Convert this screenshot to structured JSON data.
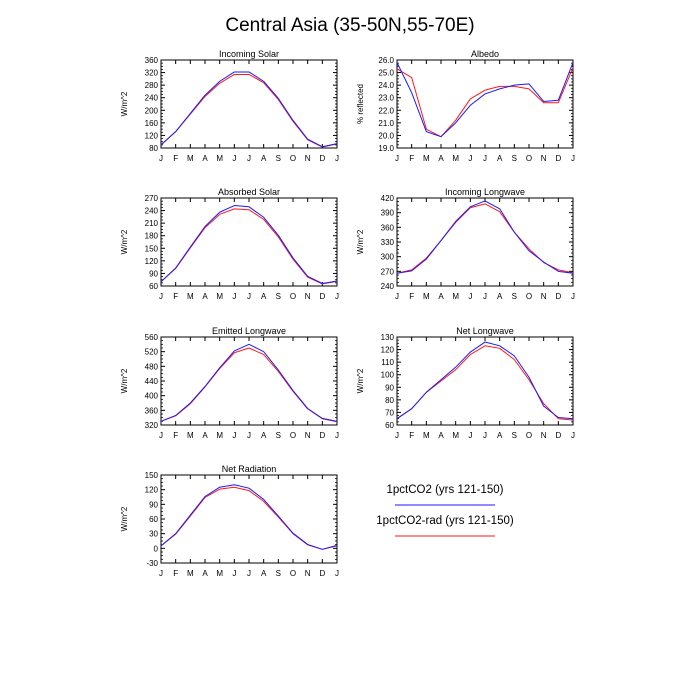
{
  "figure": {
    "title": "Central Asia (35-50N,55-70E)",
    "colors": {
      "series_a": "#1a1aff",
      "series_b": "#ff1a1a",
      "axis": "#000000"
    }
  },
  "legend": {
    "items": [
      {
        "label": "1pctCO2 (yrs 121-150)",
        "color": "#1a1aff"
      },
      {
        "label": "1pctCO2-rad (yrs 121-150)",
        "color": "#ff1a1a"
      }
    ]
  },
  "chart_data": [
    {
      "type": "line",
      "title": "Incoming Solar",
      "ylabel": "W/m^2",
      "categories": [
        "J",
        "F",
        "M",
        "A",
        "M",
        "J",
        "J",
        "A",
        "S",
        "O",
        "N",
        "D",
        "J"
      ],
      "ylim": [
        80,
        360
      ],
      "yticks": [
        80,
        120,
        160,
        200,
        240,
        280,
        320,
        360
      ],
      "series": [
        {
          "values": [
            90,
            132,
            190,
            248,
            292,
            322,
            322,
            292,
            238,
            168,
            108,
            84,
            94
          ]
        },
        {
          "values": [
            90,
            132,
            188,
            244,
            286,
            314,
            314,
            288,
            234,
            165,
            106,
            83,
            93
          ]
        }
      ]
    },
    {
      "type": "line",
      "title": "Albedo",
      "ylabel": "% reflected",
      "categories": [
        "J",
        "F",
        "M",
        "A",
        "M",
        "J",
        "J",
        "A",
        "S",
        "O",
        "N",
        "D",
        "J"
      ],
      "ylim": [
        19.0,
        26.0
      ],
      "yticks": [
        "19.0",
        "20.0",
        "21.0",
        "22.0",
        "23.0",
        "24.0",
        "25.0",
        "26.0"
      ],
      "series": [
        {
          "values": [
            25.8,
            23.4,
            20.3,
            19.9,
            21.0,
            22.4,
            23.3,
            23.7,
            24.0,
            24.1,
            22.7,
            22.8,
            25.8
          ]
        },
        {
          "values": [
            25.3,
            24.6,
            20.5,
            19.9,
            21.2,
            22.9,
            23.6,
            23.9,
            23.9,
            23.7,
            22.6,
            22.6,
            25.4
          ]
        }
      ]
    },
    {
      "type": "line",
      "title": "Absorbed Solar",
      "ylabel": "W/m^2",
      "categories": [
        "J",
        "F",
        "M",
        "A",
        "M",
        "J",
        "J",
        "A",
        "S",
        "O",
        "N",
        "D",
        "J"
      ],
      "ylim": [
        60,
        270
      ],
      "yticks": [
        60,
        90,
        120,
        150,
        180,
        210,
        240,
        270
      ],
      "series": [
        {
          "values": [
            70,
            103,
            153,
            202,
            236,
            252,
            249,
            224,
            181,
            127,
            83,
            66,
            72
          ]
        },
        {
          "values": [
            70,
            102,
            151,
            199,
            231,
            244,
            242,
            219,
            177,
            124,
            81,
            65,
            71
          ]
        }
      ]
    },
    {
      "type": "line",
      "title": "Incoming Longwave",
      "ylabel": "W/m^2",
      "categories": [
        "J",
        "F",
        "M",
        "A",
        "M",
        "J",
        "J",
        "A",
        "S",
        "O",
        "N",
        "D",
        "J"
      ],
      "ylim": [
        240,
        420
      ],
      "yticks": [
        240,
        270,
        300,
        330,
        360,
        390,
        420
      ],
      "series": [
        {
          "values": [
            266,
            271,
            295,
            333,
            372,
            402,
            414,
            398,
            350,
            312,
            289,
            270,
            266
          ]
        },
        {
          "values": [
            266,
            273,
            297,
            333,
            370,
            400,
            408,
            392,
            350,
            316,
            288,
            273,
            267
          ]
        }
      ]
    },
    {
      "type": "line",
      "title": "Emitted Longwave",
      "ylabel": "W/m^2",
      "categories": [
        "J",
        "F",
        "M",
        "A",
        "M",
        "J",
        "J",
        "A",
        "S",
        "O",
        "N",
        "D",
        "J"
      ],
      "ylim": [
        320,
        560
      ],
      "yticks": [
        320,
        360,
        400,
        440,
        480,
        520,
        560
      ],
      "series": [
        {
          "values": [
            330,
            346,
            380,
            425,
            476,
            522,
            540,
            520,
            470,
            414,
            365,
            338,
            330
          ]
        },
        {
          "values": [
            330,
            345,
            378,
            424,
            474,
            517,
            530,
            512,
            466,
            412,
            364,
            337,
            329
          ]
        }
      ]
    },
    {
      "type": "line",
      "title": "Net Longwave",
      "ylabel": "W/m^2",
      "categories": [
        "J",
        "F",
        "M",
        "A",
        "M",
        "J",
        "J",
        "A",
        "S",
        "O",
        "N",
        "D",
        "J"
      ],
      "ylim": [
        60,
        130
      ],
      "yticks": [
        60,
        70,
        80,
        90,
        100,
        110,
        120,
        130
      ],
      "series": [
        {
          "values": [
            65,
            73,
            86,
            96,
            106,
            118,
            126,
            123,
            115,
            98,
            75,
            66,
            65
          ]
        },
        {
          "values": [
            65,
            73,
            86,
            95,
            104,
            116,
            123,
            121,
            112,
            96,
            77,
            65,
            64
          ]
        }
      ]
    },
    {
      "type": "line",
      "title": "Net Radiation",
      "ylabel": "W/m^2",
      "categories": [
        "J",
        "F",
        "M",
        "A",
        "M",
        "J",
        "J",
        "A",
        "S",
        "O",
        "N",
        "D",
        "J"
      ],
      "ylim": [
        -30,
        150
      ],
      "yticks": [
        -30,
        0,
        30,
        60,
        90,
        120,
        150
      ],
      "series": [
        {
          "values": [
            5,
            30,
            68,
            106,
            125,
            130,
            123,
            100,
            66,
            31,
            8,
            -2,
            6
          ]
        },
        {
          "values": [
            5,
            29,
            66,
            104,
            121,
            125,
            118,
            96,
            64,
            30,
            7,
            -2,
            5
          ]
        }
      ]
    }
  ]
}
